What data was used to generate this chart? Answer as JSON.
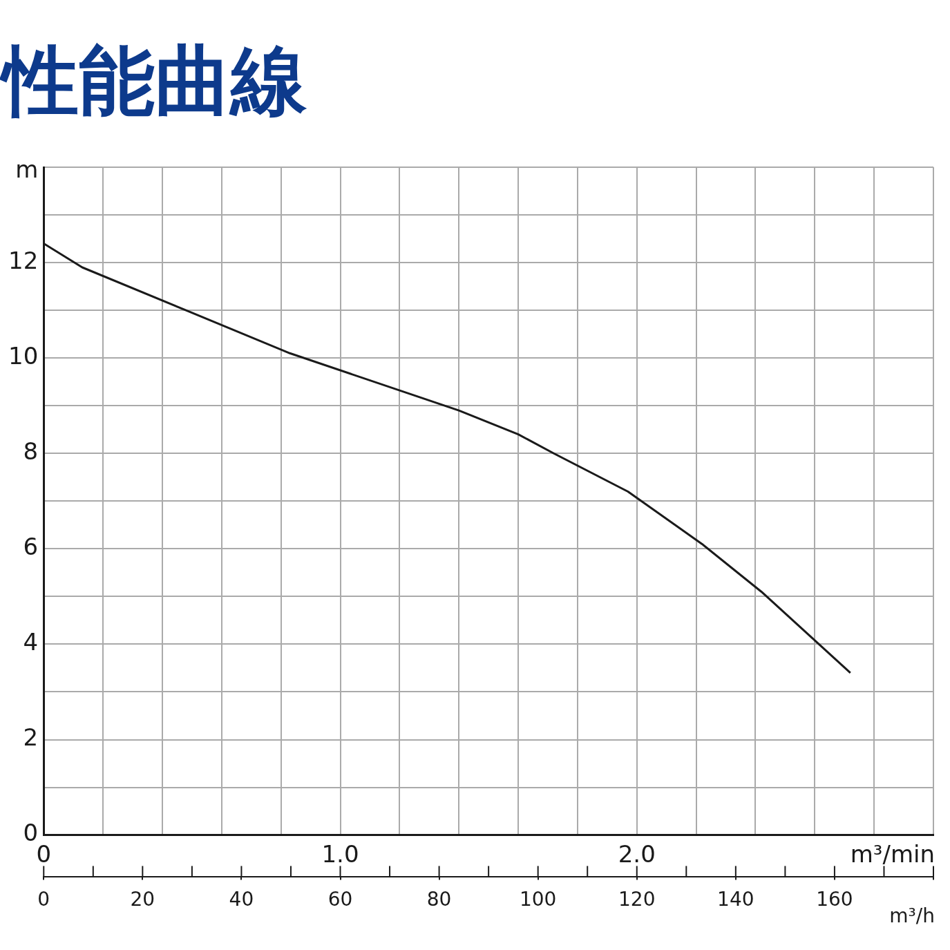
{
  "chart_data": {
    "type": "line",
    "title": "性能曲線",
    "ylabel": "m",
    "xlabel": "m³/min",
    "x2label": "m³/h",
    "x": [
      0,
      0.13,
      0.48,
      0.83,
      1.4,
      1.6,
      1.72,
      1.97,
      2.22,
      2.42,
      2.72
    ],
    "series": [
      {
        "color": "#1a1a1a",
        "values": [
          12.4,
          11.9,
          11.0,
          10.1,
          8.9,
          8.4,
          8.0,
          7.2,
          6.1,
          5.1,
          3.4
        ]
      }
    ],
    "xlim": [
      0,
      3.0
    ],
    "xticks": [
      0,
      {
        "value": 0.2,
        "label": null
      },
      {
        "value": 0.4,
        "label": null
      },
      {
        "value": 0.6,
        "label": null
      },
      {
        "value": 0.8,
        "label": null
      },
      {
        "value": 1.0,
        "label": "1.0"
      },
      {
        "value": 1.2,
        "label": null
      },
      {
        "value": 1.4,
        "label": null
      },
      {
        "value": 1.6,
        "label": null
      },
      {
        "value": 1.8,
        "label": null
      },
      {
        "value": 2.0,
        "label": "2.0"
      },
      {
        "value": 2.2,
        "label": null
      },
      {
        "value": 2.4,
        "label": null
      },
      {
        "value": 2.6,
        "label": null
      },
      {
        "value": 2.8,
        "label": null
      },
      {
        "value": 3.0,
        "label": null
      }
    ],
    "x2lim": [
      0,
      180
    ],
    "x2ticks": [
      0,
      20,
      40,
      60,
      80,
      100,
      120,
      140,
      160,
      {
        "value": 180,
        "label": null
      }
    ],
    "ylim": [
      0,
      14
    ],
    "yticks": [
      0,
      {
        "value": 1,
        "label": null
      },
      2,
      {
        "value": 3,
        "label": null
      },
      4,
      {
        "value": 5,
        "label": null
      },
      6,
      {
        "value": 7,
        "label": null
      },
      8,
      {
        "value": 9,
        "label": null
      },
      10,
      {
        "value": 11,
        "label": null
      },
      12,
      {
        "value": 13,
        "label": null
      },
      {
        "value": 14,
        "label": null
      }
    ],
    "grid": true,
    "marker": "none",
    "line_style": "solid",
    "legend": false
  }
}
